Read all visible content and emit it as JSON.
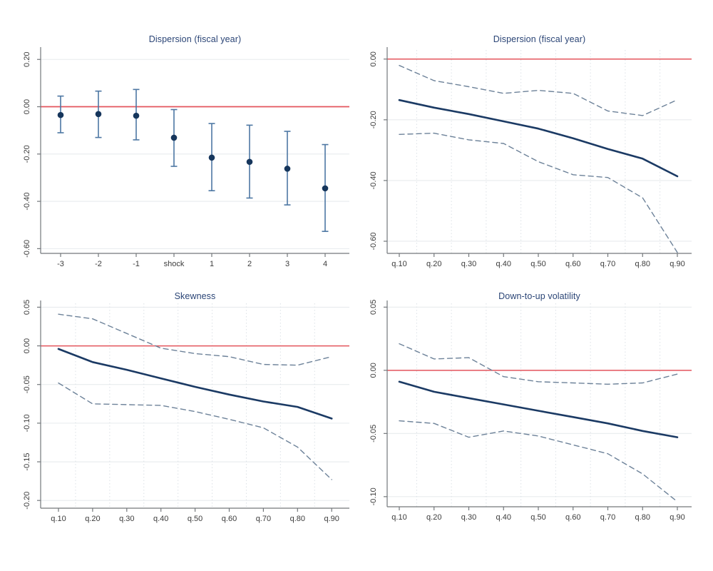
{
  "figure": {
    "background": "#ffffff",
    "colors": {
      "zero_line": "#e4555c",
      "estimate_line": "#1b3a64",
      "ci_line": "#6d8299",
      "marker": "#16365c",
      "error_bar": "#4d77a3",
      "axis": "#73777b",
      "tick_label": "#3c3c3c",
      "title": "#2b4576",
      "grid_horizontal": "#e8ebee",
      "grid_vertical": "#dce1e6"
    }
  },
  "chart_data": [
    {
      "id": "dispersion-event-study",
      "type": "scatter",
      "title": "Dispersion (fiscal year)",
      "xlabel": "",
      "ylabel": "",
      "categories": [
        "-3",
        "-2",
        "-1",
        "shock",
        "1",
        "2",
        "3",
        "4"
      ],
      "points": [
        -0.035,
        -0.031,
        -0.038,
        -0.131,
        -0.215,
        -0.233,
        -0.262,
        -0.345
      ],
      "ci_high": [
        0.045,
        0.066,
        0.073,
        -0.012,
        -0.071,
        -0.078,
        -0.104,
        -0.16
      ],
      "ci_low": [
        -0.11,
        -0.13,
        -0.14,
        -0.252,
        -0.355,
        -0.386,
        -0.415,
        -0.527
      ],
      "ytick_values": [
        0.2,
        0.0,
        -0.2,
        -0.4,
        -0.6
      ],
      "ytick_labels": [
        "0.20",
        "0.00",
        "-0.20",
        "-0.40",
        "-0.60"
      ],
      "ylim": [
        0.24,
        -0.62
      ],
      "zero_line": 0,
      "grid": {
        "horizontal": true,
        "vertical_dotted": false
      },
      "legend": "none"
    },
    {
      "id": "dispersion-quantile",
      "type": "line",
      "title": "Dispersion (fiscal year)",
      "xlabel": "",
      "ylabel": "",
      "categories": [
        "q.10",
        "q.20",
        "q.30",
        "q.40",
        "q.50",
        "q.60",
        "q.70",
        "q.80",
        "q.90"
      ],
      "series": [
        {
          "name": "estimate",
          "style": "solid",
          "values": [
            -0.135,
            -0.16,
            -0.181,
            -0.205,
            -0.229,
            -0.261,
            -0.296,
            -0.328,
            -0.386
          ]
        },
        {
          "name": "ci-upper",
          "style": "dashed",
          "values": [
            -0.021,
            -0.071,
            -0.091,
            -0.113,
            -0.103,
            -0.113,
            -0.171,
            -0.186,
            -0.134
          ]
        },
        {
          "name": "ci-lower",
          "style": "dashed",
          "values": [
            -0.248,
            -0.244,
            -0.266,
            -0.278,
            -0.338,
            -0.381,
            -0.39,
            -0.457,
            -0.637
          ]
        }
      ],
      "ytick_values": [
        0.0,
        -0.2,
        -0.4,
        -0.6
      ],
      "ytick_labels": [
        "0.00",
        "-0.20",
        "-0.40",
        "-0.60"
      ],
      "ylim": [
        0.03,
        -0.64
      ],
      "zero_line": 0,
      "grid": {
        "horizontal": true,
        "vertical_dotted": true
      },
      "legend": "none"
    },
    {
      "id": "skewness-quantile",
      "type": "line",
      "title": "Skewness",
      "xlabel": "",
      "ylabel": "",
      "categories": [
        "q.10",
        "q.20",
        "q.30",
        "q.40",
        "q.50",
        "q.60",
        "q.70",
        "q.80",
        "q.90"
      ],
      "series": [
        {
          "name": "estimate",
          "style": "solid",
          "values": [
            -0.004,
            -0.021,
            -0.031,
            -0.042,
            -0.053,
            -0.063,
            -0.072,
            -0.079,
            -0.094
          ]
        },
        {
          "name": "ci-upper",
          "style": "dashed",
          "values": [
            0.041,
            0.035,
            0.016,
            -0.003,
            -0.01,
            -0.014,
            -0.024,
            -0.025,
            -0.014
          ]
        },
        {
          "name": "ci-lower",
          "style": "dashed",
          "values": [
            -0.048,
            -0.075,
            -0.076,
            -0.077,
            -0.085,
            -0.095,
            -0.106,
            -0.131,
            -0.173
          ]
        }
      ],
      "ytick_values": [
        0.05,
        0.0,
        -0.05,
        -0.1,
        -0.15,
        -0.2
      ],
      "ytick_labels": [
        "0.05",
        "0.00",
        "-0.05",
        "-0.10",
        "-0.15",
        "-0.20"
      ],
      "ylim": [
        0.055,
        -0.21
      ],
      "zero_line": 0,
      "grid": {
        "horizontal": true,
        "vertical_dotted": true
      },
      "legend": "none"
    },
    {
      "id": "down-to-up-volatility-quantile",
      "type": "line",
      "title": "Down-to-up volatility",
      "xlabel": "",
      "ylabel": "",
      "categories": [
        "q.10",
        "q.20",
        "q.30",
        "q.40",
        "q.50",
        "q.60",
        "q.70",
        "q.80",
        "q.90"
      ],
      "series": [
        {
          "name": "estimate",
          "style": "solid",
          "values": [
            -0.009,
            -0.017,
            -0.022,
            -0.027,
            -0.032,
            -0.037,
            -0.042,
            -0.048,
            -0.053
          ]
        },
        {
          "name": "ci-upper",
          "style": "dashed",
          "values": [
            0.021,
            0.009,
            0.01,
            -0.005,
            -0.009,
            -0.01,
            -0.011,
            -0.01,
            -0.003
          ]
        },
        {
          "name": "ci-lower",
          "style": "dashed",
          "values": [
            -0.04,
            -0.042,
            -0.053,
            -0.048,
            -0.052,
            -0.059,
            -0.066,
            -0.082,
            -0.104
          ]
        }
      ],
      "ytick_values": [
        0.05,
        0.0,
        -0.05,
        -0.1
      ],
      "ytick_labels": [
        "0.05",
        "0.00",
        "-0.05",
        "-0.10"
      ],
      "ylim": [
        0.053,
        -0.108
      ],
      "zero_line": 0,
      "grid": {
        "horizontal": true,
        "vertical_dotted": true
      },
      "legend": "none"
    }
  ]
}
